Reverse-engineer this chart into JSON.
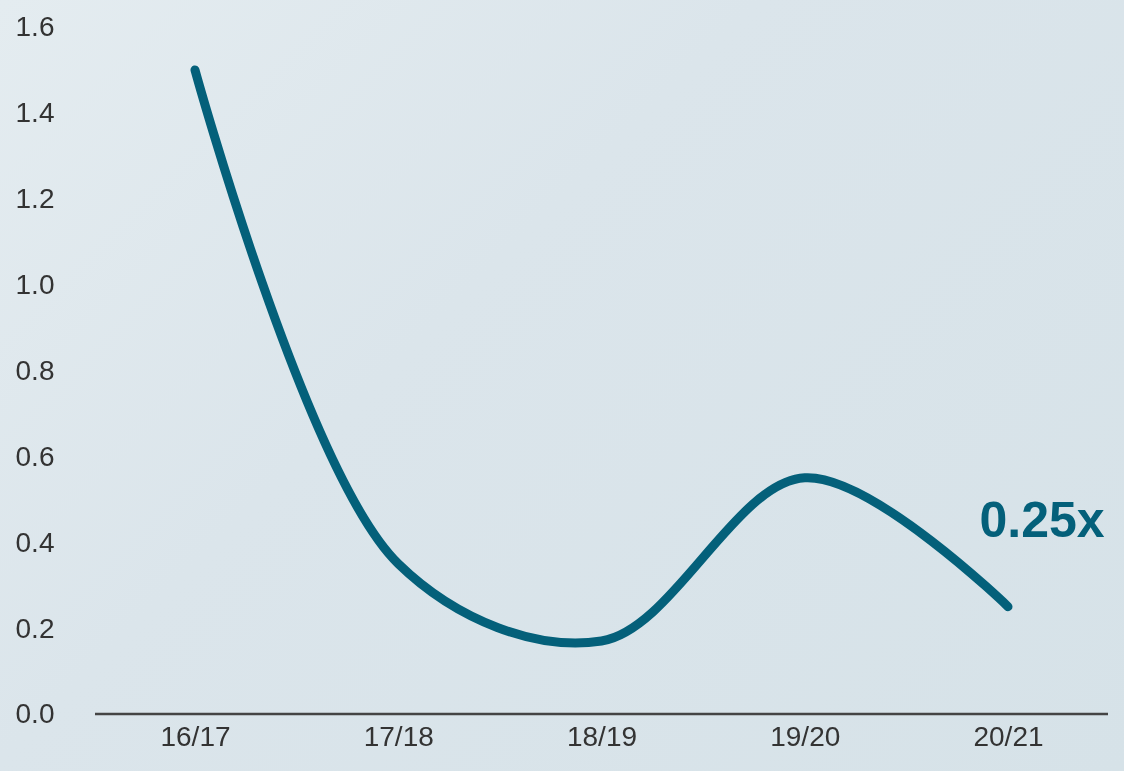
{
  "chart_data": {
    "type": "line",
    "categories": [
      "16/17",
      "17/18",
      "18/19",
      "19/20",
      "20/21"
    ],
    "series": [
      {
        "color": "#04607a",
        "values": [
          1.5,
          0.35,
          0.17,
          0.55,
          0.25
        ]
      }
    ],
    "ylim": [
      0,
      1.6
    ],
    "yticks": [
      {
        "value": 0,
        "label": "0.0"
      },
      0.2,
      0.4,
      0.6,
      0.8,
      {
        "value": 1,
        "label": "1.0"
      },
      1.2,
      1.4,
      1.6
    ],
    "grid": false,
    "marker": "none",
    "line_style": "solid",
    "annotations": [
      {
        "text": "0.25x",
        "x": "20/21",
        "y": 0.25
      }
    ]
  }
}
